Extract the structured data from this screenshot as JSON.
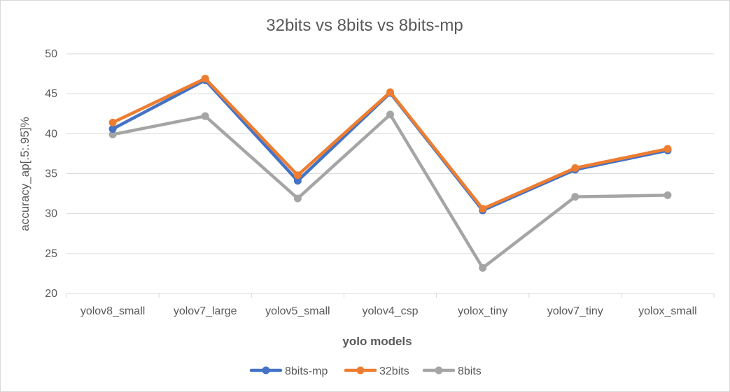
{
  "chart_data": {
    "type": "line",
    "title": "32bits vs 8bits vs 8bits-mp",
    "xlabel": "yolo models",
    "ylabel": "accuracy_ap[.5:.95]%",
    "ylim": [
      20,
      50
    ],
    "yticks": [
      "20",
      "25",
      "30",
      "35",
      "40",
      "45",
      "50"
    ],
    "grid": true,
    "legend_position": "bottom",
    "categories": [
      "yolov8_small",
      "yolov7_large",
      "yolov5_small",
      "yolov4_csp",
      "yolox_tiny",
      "yolov7_tiny",
      "yolox_small"
    ],
    "series": [
      {
        "name": "8bits-mp",
        "color": "#4472c4",
        "values": [
          40.6,
          46.7,
          34.1,
          45.1,
          30.4,
          35.5,
          37.9
        ]
      },
      {
        "name": "32bits",
        "color": "#ed7d31",
        "values": [
          41.4,
          46.9,
          34.8,
          45.2,
          30.6,
          35.7,
          38.1
        ]
      },
      {
        "name": "8bits",
        "color": "#a5a5a5",
        "values": [
          39.9,
          42.2,
          31.9,
          42.4,
          23.2,
          32.1,
          32.3
        ]
      }
    ]
  }
}
